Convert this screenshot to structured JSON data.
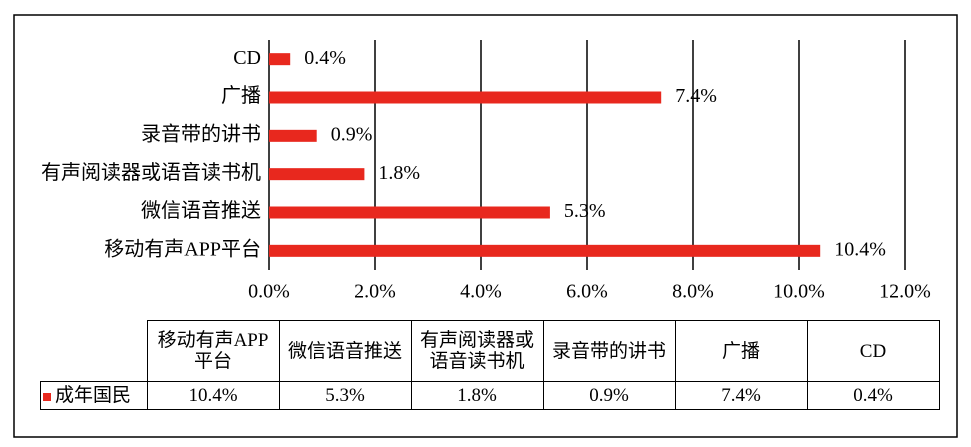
{
  "chart_data": {
    "type": "hbar",
    "categories": [
      "移动有声APP平台",
      "微信语音推送",
      "有声阅读器或语音读书机",
      "录音带的讲书",
      "广播",
      "CD"
    ],
    "series": [
      {
        "name": "成年国民",
        "color": "#e8281e",
        "values": [
          10.4,
          5.3,
          1.8,
          0.9,
          7.4,
          0.4
        ],
        "value_labels": [
          "10.4%",
          "5.3%",
          "1.8%",
          "0.9%",
          "7.4%",
          "0.4%"
        ]
      }
    ],
    "xlim": [
      0,
      12
    ],
    "xticks": [
      {
        "value": 0,
        "label": "0.0%"
      },
      {
        "value": 2,
        "label": "2.0%"
      },
      {
        "value": 4,
        "label": "4.0%"
      },
      {
        "value": 6,
        "label": "6.0%"
      },
      {
        "value": 8,
        "label": "8.0%"
      },
      {
        "value": 10,
        "label": "10.0%"
      },
      {
        "value": 12,
        "label": "12.0%"
      }
    ],
    "grid": true
  }
}
